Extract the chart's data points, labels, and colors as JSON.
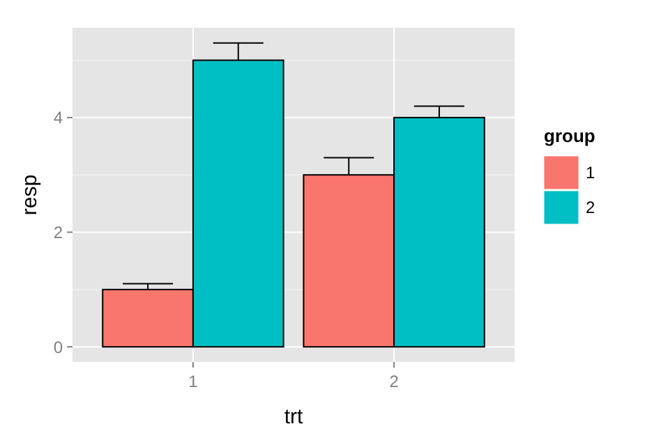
{
  "chart_data": {
    "type": "bar",
    "xlabel": "trt",
    "ylabel": "resp",
    "legend_title": "group",
    "categories": [
      "1",
      "2"
    ],
    "series": [
      {
        "name": "1",
        "color": "#f8766d",
        "values": [
          1,
          3
        ],
        "errors": [
          0.1,
          0.3
        ]
      },
      {
        "name": "2",
        "color": "#00bfc4",
        "values": [
          5,
          4
        ],
        "errors": [
          0.3,
          0.2
        ]
      }
    ],
    "ylim": [
      -0.265,
      5.565
    ],
    "yticks": [
      0,
      2,
      4
    ],
    "grid": true,
    "legend": "right"
  }
}
